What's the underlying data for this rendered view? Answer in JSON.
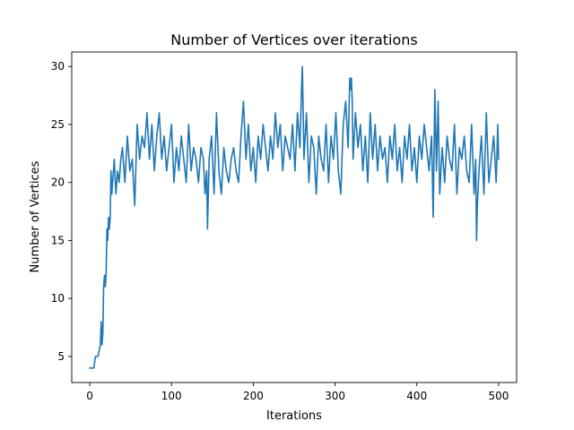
{
  "chart_data": {
    "type": "line",
    "title": "Number of Vertices over iterations",
    "xlabel": "Iterations",
    "ylabel": "Number of Vertices",
    "xlim": [
      -22,
      522
    ],
    "ylim": [
      2.75,
      31.25
    ],
    "xticks": [
      0,
      100,
      200,
      300,
      400,
      500
    ],
    "yticks": [
      5,
      10,
      15,
      20,
      25,
      30
    ],
    "grid": false,
    "series": [
      {
        "color": "#1f77b4",
        "x": [
          0,
          5,
          7,
          10,
          13,
          14,
          15,
          16,
          17,
          18,
          19,
          20,
          21,
          22,
          23,
          24,
          25,
          26,
          27,
          28,
          30,
          32,
          34,
          36,
          38,
          40,
          43,
          46,
          49,
          52,
          55,
          58,
          61,
          64,
          67,
          70,
          73,
          76,
          79,
          82,
          85,
          88,
          91,
          94,
          97,
          100,
          103,
          106,
          109,
          112,
          115,
          118,
          121,
          124,
          127,
          130,
          133,
          136,
          139,
          141,
          143,
          144,
          146,
          149,
          152,
          155,
          158,
          161,
          164,
          167,
          170,
          173,
          176,
          179,
          182,
          185,
          188,
          191,
          194,
          197,
          200,
          203,
          206,
          209,
          212,
          215,
          218,
          221,
          224,
          227,
          230,
          233,
          236,
          239,
          242,
          245,
          248,
          251,
          254,
          257,
          259,
          260,
          262,
          265,
          268,
          271,
          274,
          277,
          280,
          283,
          286,
          289,
          292,
          295,
          298,
          301,
          304,
          307,
          310,
          313,
          316,
          318,
          319,
          320,
          321,
          322,
          325,
          328,
          331,
          334,
          337,
          340,
          343,
          346,
          349,
          352,
          355,
          358,
          361,
          364,
          367,
          370,
          373,
          376,
          379,
          382,
          385,
          388,
          391,
          394,
          397,
          400,
          403,
          406,
          409,
          412,
          415,
          418,
          420,
          422,
          424,
          426,
          428,
          431,
          434,
          437,
          440,
          443,
          446,
          449,
          452,
          455,
          458,
          461,
          464,
          467,
          470,
          472,
          473,
          474,
          476,
          479,
          482,
          485,
          488,
          491,
          494,
          497,
          499,
          500
        ],
        "y": [
          4,
          4,
          5,
          5,
          6,
          8,
          6,
          7,
          11,
          12,
          11,
          12,
          16,
          15,
          17,
          16,
          17,
          21,
          19,
          20,
          22,
          19,
          21,
          20,
          22,
          23,
          20,
          24,
          21,
          22,
          18,
          25,
          22,
          24,
          23,
          26,
          22,
          25,
          21,
          24,
          26,
          22,
          24,
          21,
          23,
          25,
          20,
          23,
          21,
          24,
          22,
          20,
          25,
          21,
          23,
          22,
          20,
          23,
          22,
          19,
          21,
          16,
          22,
          24,
          19,
          26,
          21,
          19,
          23,
          21,
          20,
          22,
          23,
          21,
          20,
          24,
          27,
          22,
          25,
          21,
          23,
          20,
          24,
          22,
          25,
          23,
          21,
          24,
          22,
          26,
          23,
          25,
          21,
          24,
          23,
          22,
          25,
          21,
          26,
          23,
          28,
          30,
          22,
          26,
          20,
          24,
          23,
          19,
          24,
          22,
          21,
          25,
          20,
          24,
          22,
          26,
          21,
          19,
          25,
          27,
          23,
          29,
          28,
          29,
          27,
          22,
          26,
          23,
          25,
          21,
          24,
          20,
          26,
          22,
          25,
          21,
          24,
          22,
          23,
          20,
          24,
          22,
          25,
          21,
          23,
          20,
          24,
          22,
          25,
          21,
          23,
          20,
          24,
          22,
          25,
          23,
          21,
          24,
          17,
          28,
          21,
          27,
          19,
          23,
          20,
          24,
          22,
          21,
          25,
          19,
          23,
          22,
          24,
          21,
          20,
          25,
          19,
          22,
          15,
          18,
          21,
          24,
          19,
          26,
          20,
          22,
          24,
          20,
          25,
          22
        ]
      }
    ]
  }
}
